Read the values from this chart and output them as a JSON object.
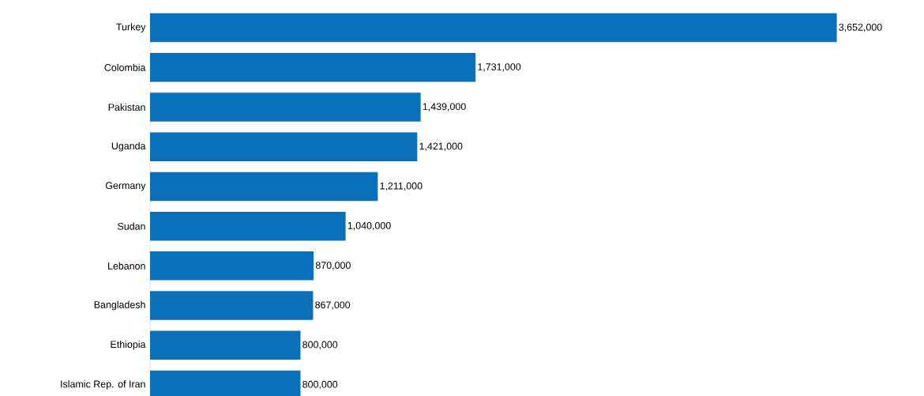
{
  "chart_data": {
    "type": "bar",
    "orientation": "horizontal",
    "categories": [
      "Turkey",
      "Colombia",
      "Pakistan",
      "Uganda",
      "Germany",
      "Sudan",
      "Lebanon",
      "Bangladesh",
      "Ethiopia",
      "Islamic Rep. of Iran"
    ],
    "values": [
      3652000,
      1731000,
      1439000,
      1421000,
      1211000,
      1040000,
      870000,
      867000,
      800000,
      800000
    ],
    "value_labels": [
      "3,652,000",
      "1,731,000",
      "1,439,000",
      "1,421,000",
      "1,211,000",
      "1,040,000",
      "870,000",
      "867,000",
      "800,000",
      "800,000"
    ],
    "color": "#0b70ba"
  }
}
